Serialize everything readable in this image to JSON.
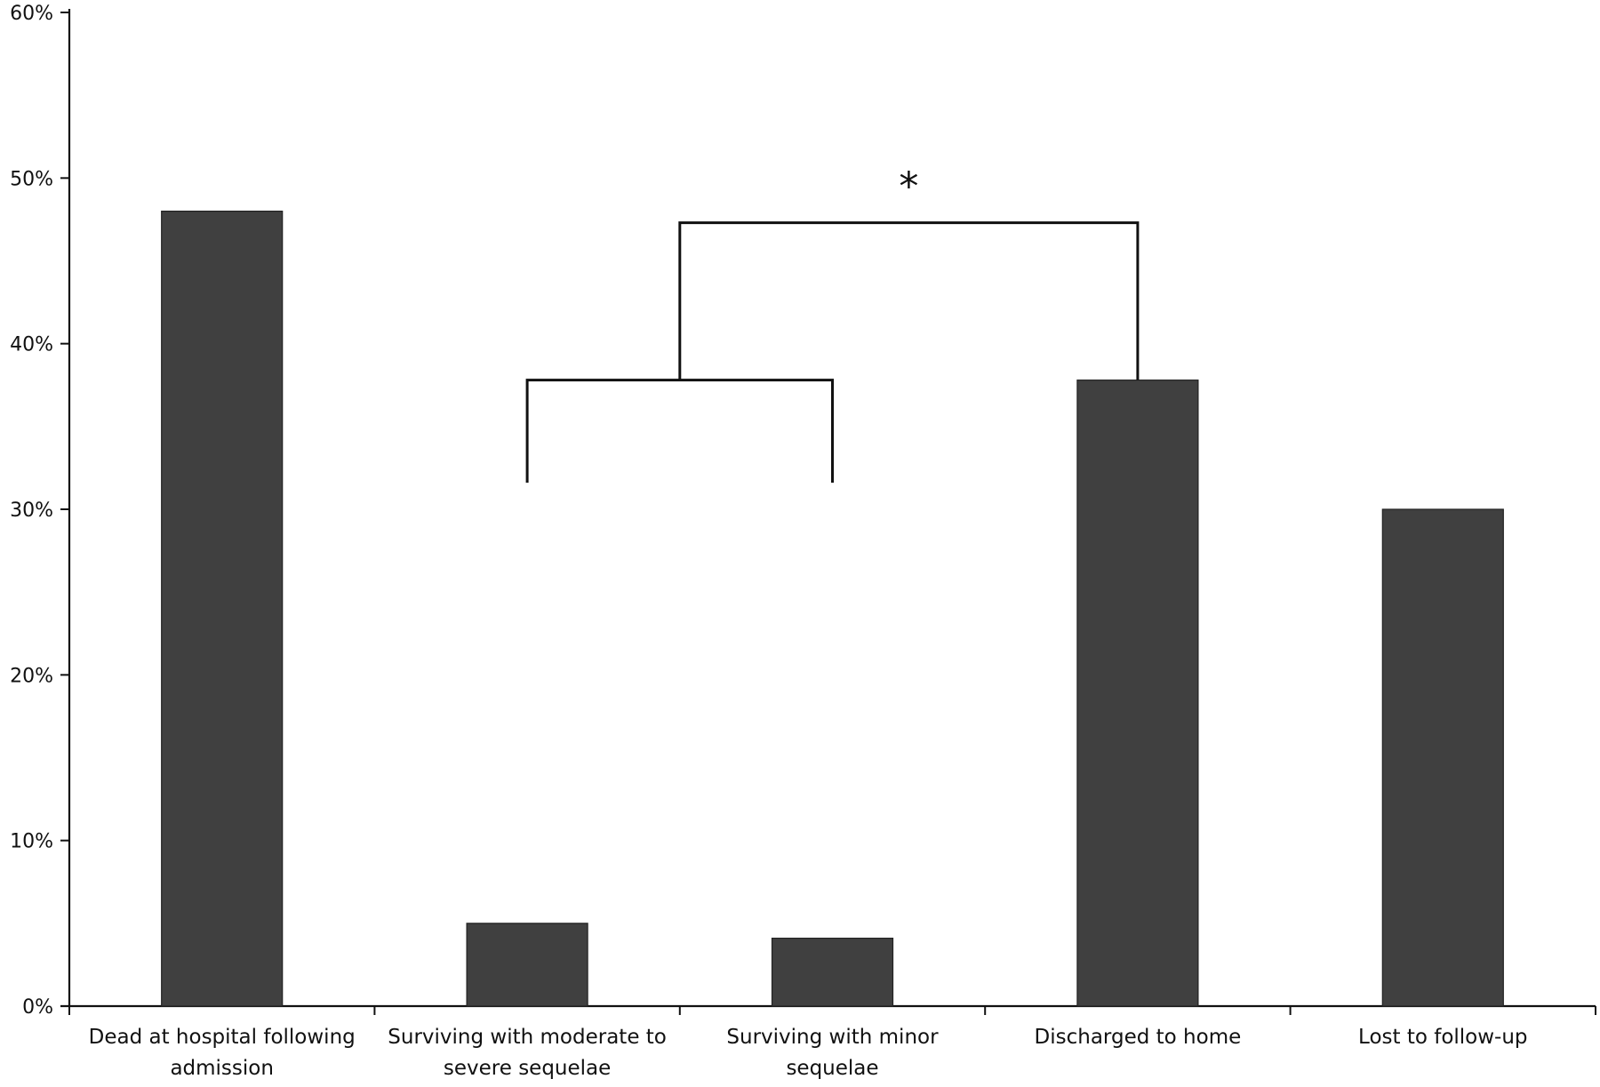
{
  "chart_data": {
    "type": "bar",
    "categories": [
      [
        "Dead at hospital following",
        "admission"
      ],
      [
        "Surviving with moderate to",
        "severe sequelae"
      ],
      [
        "Surviving with minor",
        "sequelae"
      ],
      [
        "Discharged to home"
      ],
      [
        "Lost to follow-up"
      ]
    ],
    "values": [
      48,
      5,
      4.1,
      37.8,
      30
    ],
    "yticks": [
      "0%",
      "10%",
      "20%",
      "30%",
      "40%",
      "50%",
      "60%"
    ],
    "ylim": [
      0,
      60
    ],
    "title": "",
    "xlabel": "",
    "ylabel": "",
    "grid": false,
    "bar_color": "#404040",
    "annotation": "*"
  }
}
